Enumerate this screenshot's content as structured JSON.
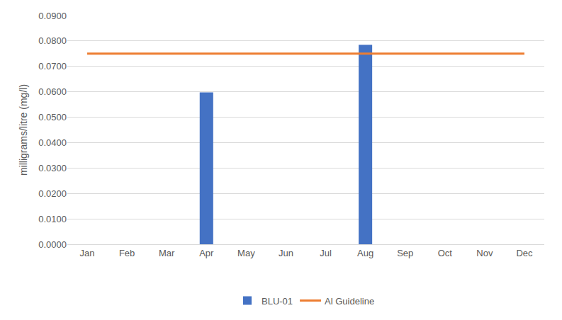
{
  "chart_data": {
    "type": "bar",
    "y_label": "milligrams/litre (mg/l)",
    "categories": [
      "Jan",
      "Feb",
      "Mar",
      "Apr",
      "May",
      "Jun",
      "Jul",
      "Aug",
      "Sep",
      "Oct",
      "Nov",
      "Dec"
    ],
    "series": [
      {
        "name": "BLU-01",
        "type": "bar",
        "color": "#4472c4",
        "values": [
          null,
          null,
          null,
          0.0598,
          null,
          null,
          null,
          0.0785,
          null,
          null,
          null,
          null
        ]
      },
      {
        "name": "Al Guideline",
        "type": "line",
        "color": "#ed7d31",
        "values": [
          0.075,
          0.075,
          0.075,
          0.075,
          0.075,
          0.075,
          0.075,
          0.075,
          0.075,
          0.075,
          0.075,
          0.075
        ]
      }
    ],
    "ylim": [
      0,
      0.09
    ],
    "yticks": [
      {
        "value": 0,
        "label": "0.0000"
      },
      {
        "value": 0.01,
        "label": "0.0100"
      },
      {
        "value": 0.02,
        "label": "0.0200"
      },
      {
        "value": 0.03,
        "label": "0.0300"
      },
      {
        "value": 0.04,
        "label": "0.0400"
      },
      {
        "value": 0.05,
        "label": "0.0500"
      },
      {
        "value": 0.06,
        "label": "0.0600"
      },
      {
        "value": 0.07,
        "label": "0.0700"
      },
      {
        "value": 0.08,
        "label": "0.0800"
      },
      {
        "value": 0.09,
        "label": "0.0900"
      }
    ],
    "grid": true,
    "legend": "bottom"
  }
}
